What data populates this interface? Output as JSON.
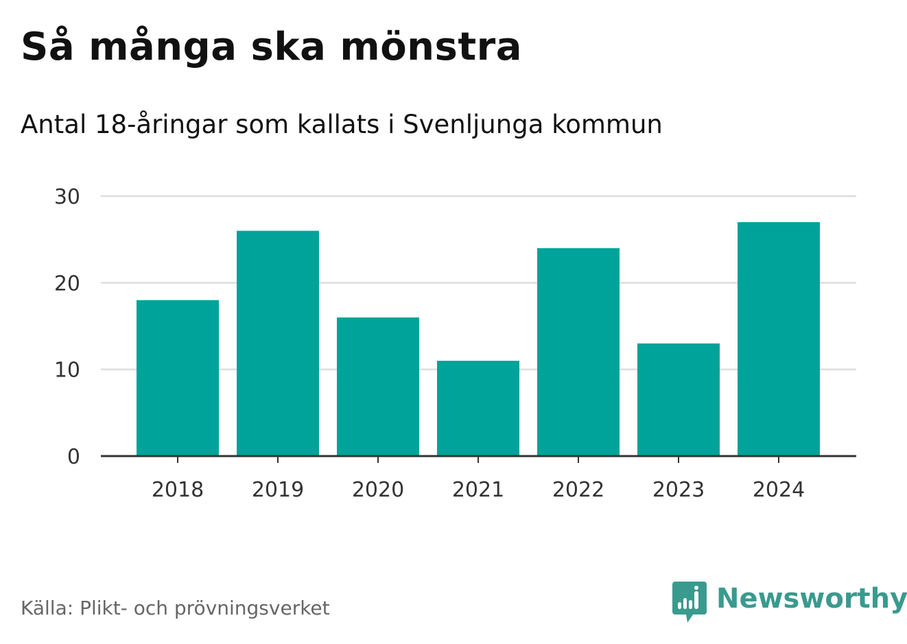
{
  "title": "Så många ska mönstra",
  "subtitle": "Antal 18-åringar som kallats i Svenljunga kommun",
  "source": "Källa: Plikt- och prövningsverket",
  "brand": {
    "name": "Newsworthy",
    "icon": "newsworthy-logo-icon",
    "color": "#3a9a8e"
  },
  "chart_data": {
    "type": "bar",
    "categories": [
      "2018",
      "2019",
      "2020",
      "2021",
      "2022",
      "2023",
      "2024"
    ],
    "values": [
      18,
      26,
      16,
      11,
      24,
      13,
      27
    ],
    "ylim": [
      0,
      30
    ],
    "yticks": [
      0,
      10,
      20,
      30
    ],
    "ytick_labels": [
      "0",
      "10",
      "20",
      "30"
    ],
    "xlabel": "",
    "ylabel": "",
    "grid": true,
    "bar_color": "#00a39a",
    "grid_color": "#dddddd",
    "axis_color": "#333333"
  }
}
